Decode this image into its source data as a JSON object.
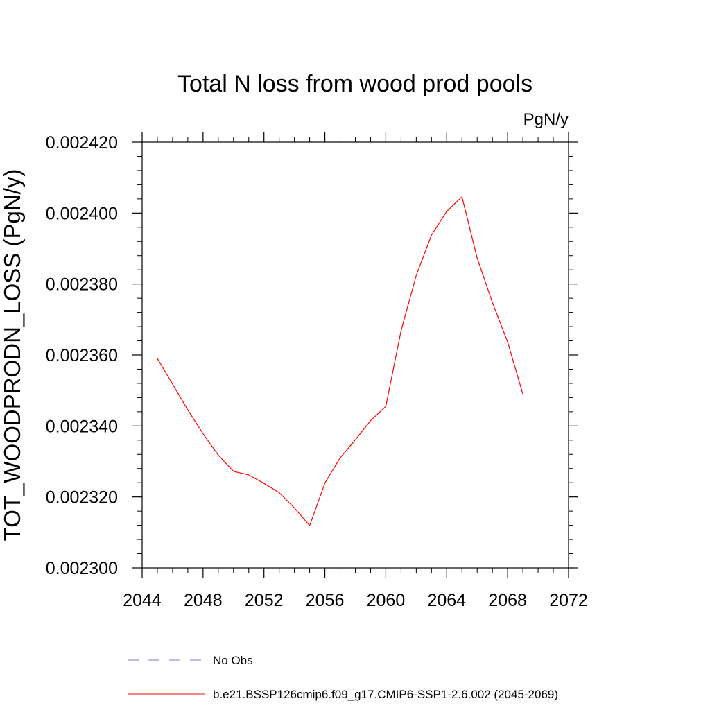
{
  "chart_data": {
    "type": "line",
    "title": "Total N loss from wood prod pools",
    "units_label": "PgN/y",
    "ylabel": "TOT_WOODPRODN_LOSS  (PgN/y)",
    "xlabel": "",
    "xlim": [
      2044,
      2072
    ],
    "ylim": [
      0.0023,
      0.00242
    ],
    "x_ticks": [
      "2044",
      "2048",
      "2052",
      "2056",
      "2060",
      "2064",
      "2068",
      "2072"
    ],
    "y_ticks": [
      "0.002300",
      "0.002320",
      "0.002340",
      "0.002360",
      "0.002380",
      "0.002400",
      "0.002420"
    ],
    "grid": false,
    "series": [
      {
        "name": "b.e21.BSSP126cmip6.f09_g17.CMIP6-SSP1-2.6.002 (2045-2069)",
        "color": "#ff0000",
        "style": "solid",
        "x": [
          2045,
          2046,
          2047,
          2048,
          2049,
          2050,
          2051,
          2052,
          2053,
          2054,
          2055,
          2056,
          2057,
          2058,
          2059,
          2060,
          2061,
          2062,
          2063,
          2064,
          2065,
          2066,
          2067,
          2068,
          2069
        ],
        "y": [
          0.002359,
          0.0023518,
          0.0023445,
          0.0023378,
          0.0023318,
          0.0023272,
          0.0023262,
          0.0023238,
          0.0023212,
          0.0023169,
          0.0023119,
          0.0023239,
          0.002331,
          0.0023361,
          0.0023415,
          0.0023455,
          0.0023668,
          0.0023825,
          0.0023938,
          0.0024005,
          0.0024046,
          0.0023873,
          0.0023748,
          0.0023637,
          0.002349
        ]
      }
    ],
    "legend": [
      {
        "label": "No Obs",
        "color": "#7b7bd0",
        "style": "dashed"
      },
      {
        "label": "b.e21.BSSP126cmip6.f09_g17.CMIP6-SSP1-2.6.002 (2045-2069)",
        "color": "#ff0000",
        "style": "solid"
      }
    ],
    "legend_position": "bottom-left"
  }
}
